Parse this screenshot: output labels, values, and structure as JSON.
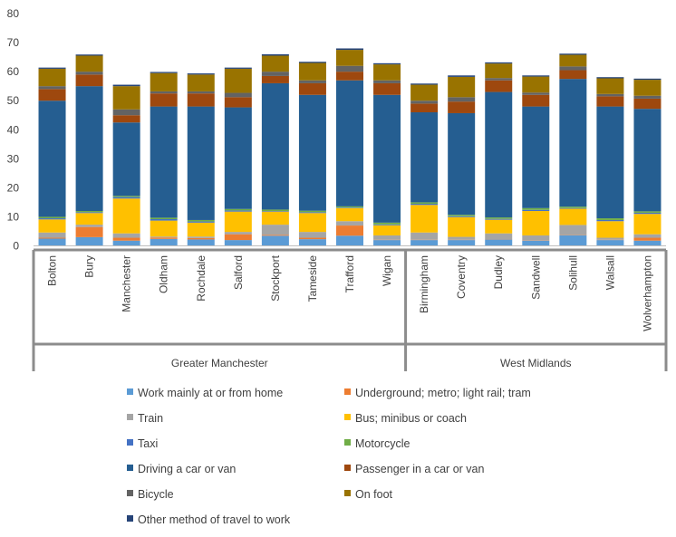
{
  "chart_data": {
    "type": "bar",
    "stacked": true,
    "title": "",
    "xlabel": "",
    "ylabel": "",
    "ylim": [
      0,
      80
    ],
    "yticks": [
      0,
      10,
      20,
      30,
      40,
      50,
      60,
      70,
      80
    ],
    "grid": false,
    "legend_position": "bottom",
    "groups": [
      {
        "name": "Greater Manchester",
        "categories": [
          "Bolton",
          "Bury",
          "Manchester",
          "Oldham",
          "Rochdale",
          "Salford",
          "Stockport",
          "Tameside",
          "Trafford",
          "Wigan"
        ]
      },
      {
        "name": "West Midlands",
        "categories": [
          "Birmingham",
          "Coventry",
          "Dudley",
          "Sandwell",
          "Solihull",
          "Walsall",
          "Wolverhampton"
        ]
      }
    ],
    "categories": [
      "Bolton",
      "Bury",
      "Manchester",
      "Oldham",
      "Rochdale",
      "Salford",
      "Stockport",
      "Tameside",
      "Trafford",
      "Wigan",
      "Birmingham",
      "Coventry",
      "Dudley",
      "Sandwell",
      "Solihull",
      "Walsall",
      "Wolverhampton"
    ],
    "series": [
      {
        "name": "Work mainly at or from home",
        "color": "#5B9BD5",
        "values": [
          2.5,
          3.0,
          1.8,
          2.4,
          2.2,
          2.0,
          3.5,
          2.3,
          3.5,
          2.0,
          2.0,
          2.0,
          2.2,
          1.8,
          3.6,
          2.0,
          1.8
        ]
      },
      {
        "name": "Underground; metro; light rail; tram",
        "color": "#ED7D31",
        "values": [
          0.3,
          3.5,
          1.0,
          0.5,
          0.5,
          2.0,
          0.3,
          0.5,
          3.5,
          0.1,
          0.1,
          0.1,
          0.1,
          0.1,
          0.1,
          0.1,
          1.0
        ]
      },
      {
        "name": "Train",
        "color": "#A5A5A5",
        "values": [
          1.8,
          0.8,
          1.5,
          0.3,
          0.5,
          0.8,
          3.5,
          2.0,
          1.5,
          1.5,
          2.5,
          1.0,
          2.0,
          1.7,
          3.5,
          0.7,
          1.2
        ]
      },
      {
        "name": "Bus; minibus or coach",
        "color": "#FFC000",
        "values": [
          4.5,
          4.0,
          12.0,
          5.5,
          4.8,
          7.0,
          4.5,
          6.5,
          4.5,
          3.5,
          9.5,
          6.8,
          4.7,
          8.4,
          5.6,
          5.7,
          7.0
        ]
      },
      {
        "name": "Taxi",
        "color": "#4472C4",
        "values": [
          0.4,
          0.3,
          0.5,
          0.5,
          0.4,
          0.4,
          0.2,
          0.3,
          0.2,
          0.3,
          0.4,
          0.3,
          0.3,
          0.4,
          0.2,
          0.4,
          0.4
        ]
      },
      {
        "name": "Motorcycle",
        "color": "#70AD47",
        "values": [
          0.5,
          0.4,
          0.4,
          0.5,
          0.5,
          0.5,
          0.5,
          0.5,
          0.4,
          0.6,
          0.5,
          0.5,
          0.5,
          0.6,
          0.5,
          0.6,
          0.5
        ]
      },
      {
        "name": "Driving a car or van",
        "color": "#255E91",
        "values": [
          40.0,
          43.0,
          25.3,
          38.3,
          39.1,
          35.0,
          43.5,
          39.9,
          43.4,
          44.0,
          31.0,
          35.0,
          43.2,
          35.0,
          44.0,
          38.5,
          35.3
        ]
      },
      {
        "name": "Passenger in a car or van",
        "color": "#9E480E",
        "values": [
          4.0,
          4.0,
          2.5,
          4.5,
          4.5,
          3.5,
          2.5,
          4.0,
          3.0,
          4.0,
          3.0,
          4.0,
          4.0,
          4.0,
          3.0,
          3.5,
          3.5
        ]
      },
      {
        "name": "Bicycle",
        "color": "#636363",
        "values": [
          1.0,
          1.0,
          2.0,
          0.7,
          0.7,
          1.5,
          1.5,
          1.0,
          2.0,
          1.0,
          1.0,
          1.5,
          0.8,
          0.8,
          1.3,
          0.8,
          1.0
        ]
      },
      {
        "name": "On foot",
        "color": "#997300",
        "values": [
          6.0,
          5.5,
          8.0,
          6.3,
          5.8,
          8.3,
          5.5,
          6.0,
          5.5,
          5.5,
          5.5,
          7.0,
          5.0,
          5.5,
          4.0,
          5.4,
          5.5
        ]
      },
      {
        "name": "Other method of travel to work",
        "color": "#264478",
        "values": [
          0.4,
          0.4,
          0.5,
          0.4,
          0.4,
          0.4,
          0.5,
          0.4,
          0.5,
          0.4,
          0.4,
          0.5,
          0.4,
          0.4,
          0.4,
          0.4,
          0.4
        ]
      }
    ]
  }
}
